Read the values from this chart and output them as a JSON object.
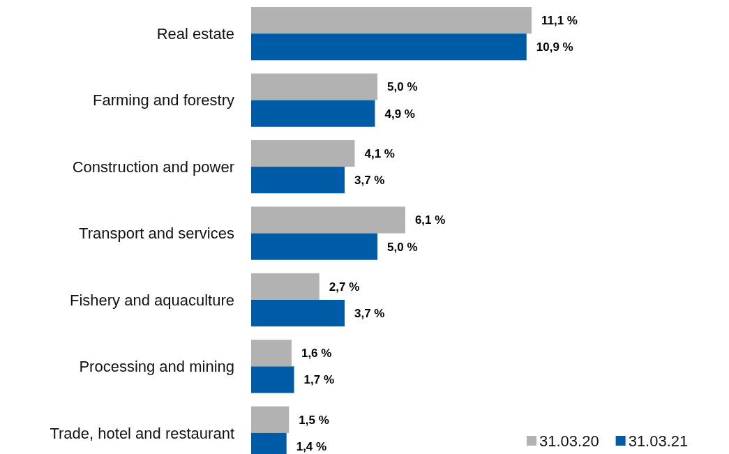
{
  "chart_data": {
    "type": "bar",
    "orientation": "horizontal",
    "categories": [
      "Real estate",
      "Farming and forestry",
      "Construction and power",
      "Transport and services",
      "Fishery and aquaculture",
      "Processing and mining",
      "Trade, hotel and restaurant"
    ],
    "series": [
      {
        "name": "31.03.20",
        "color": "#b2b2b2",
        "values": [
          11.1,
          5.0,
          4.1,
          6.1,
          2.7,
          1.6,
          1.5
        ],
        "value_labels": [
          "11,1 %",
          "5,0 %",
          "4,1 %",
          "6,1 %",
          "2,7 %",
          "1,6 %",
          "1,5 %"
        ]
      },
      {
        "name": "31.03.21",
        "color": "#005ba7",
        "values": [
          10.9,
          4.9,
          3.7,
          5.0,
          3.7,
          1.7,
          1.4
        ],
        "value_labels": [
          "10,9 %",
          "4,9 %",
          "3,7 %",
          "5,0 %",
          "3,7 %",
          "1,7 %",
          "1,4 %"
        ]
      }
    ],
    "legend": "bottom right"
  }
}
